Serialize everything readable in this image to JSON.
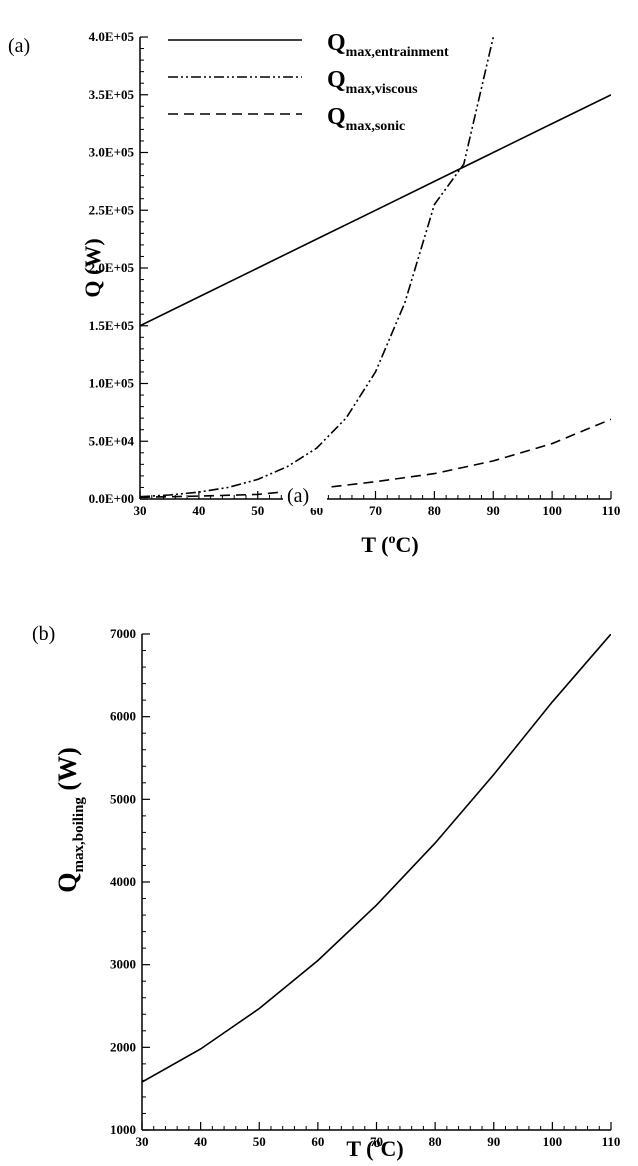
{
  "chart_data": [
    {
      "panel_label": "(a)",
      "inset_label": "(a)",
      "type": "line",
      "ylabel": "Q (W)",
      "xlabel": {
        "main": "T (",
        "sup": "o",
        "rest": "C)"
      },
      "xlim": [
        30,
        110
      ],
      "ylim": [
        0,
        400000
      ],
      "x_ticks": [
        "30",
        "40",
        "50",
        "60",
        "70",
        "80",
        "90",
        "100",
        "110"
      ],
      "x_tick_values": [
        30,
        40,
        50,
        60,
        70,
        80,
        90,
        100,
        110
      ],
      "y_ticks": [
        "0.0E+00",
        "5.0E+04",
        "1.0E+05",
        "1.5E+05",
        "2.0E+05",
        "2.5E+05",
        "3.0E+05",
        "3.5E+05",
        "4.0E+05"
      ],
      "y_tick_values": [
        0,
        50000,
        100000,
        150000,
        200000,
        250000,
        300000,
        350000,
        400000
      ],
      "series": [
        {
          "name": {
            "main": "Q",
            "sub": "max,entrainment"
          },
          "style": "solid",
          "x": [
            30,
            40,
            50,
            60,
            70,
            80,
            90,
            100,
            110
          ],
          "y": [
            150000,
            175000,
            200000,
            225000,
            250000,
            275000,
            300000,
            325000,
            350000
          ]
        },
        {
          "name": {
            "main": "Q",
            "sub": "max,viscous"
          },
          "style": "dash-dot-dot",
          "x": [
            30,
            35,
            40,
            45,
            50,
            55,
            60,
            65,
            70,
            75,
            80,
            85,
            90
          ],
          "y": [
            2000,
            3500,
            6000,
            10000,
            17000,
            28000,
            44000,
            70000,
            110000,
            170000,
            255000,
            290000,
            400000
          ]
        },
        {
          "name": {
            "main": "Q",
            "sub": "max,sonic"
          },
          "style": "dashed",
          "x": [
            30,
            40,
            50,
            60,
            70,
            80,
            90,
            100,
            110
          ],
          "y": [
            1500,
            2500,
            4000,
            9000,
            15000,
            22000,
            33000,
            48000,
            69000
          ]
        }
      ]
    },
    {
      "panel_label": "(b)",
      "type": "line",
      "ylabel": {
        "main": "Q",
        "sub": "max,boiling",
        "rest": " (W)"
      },
      "xlabel": {
        "main": "T (",
        "sup": "o",
        "rest": "C)"
      },
      "xlim": [
        30,
        110
      ],
      "ylim": [
        1000,
        7000
      ],
      "x_ticks": [
        "30",
        "40",
        "50",
        "60",
        "70",
        "80",
        "90",
        "100",
        "110"
      ],
      "x_tick_values": [
        30,
        40,
        50,
        60,
        70,
        80,
        90,
        100,
        110
      ],
      "y_ticks": [
        "1000",
        "2000",
        "3000",
        "4000",
        "5000",
        "6000",
        "7000"
      ],
      "y_tick_values": [
        1000,
        2000,
        3000,
        4000,
        5000,
        6000,
        7000
      ],
      "series": [
        {
          "style": "solid",
          "x": [
            30,
            40,
            50,
            60,
            70,
            80,
            90,
            100,
            110
          ],
          "y": [
            1580,
            1980,
            2470,
            3050,
            3720,
            4470,
            5300,
            6180,
            7000
          ]
        }
      ]
    }
  ]
}
